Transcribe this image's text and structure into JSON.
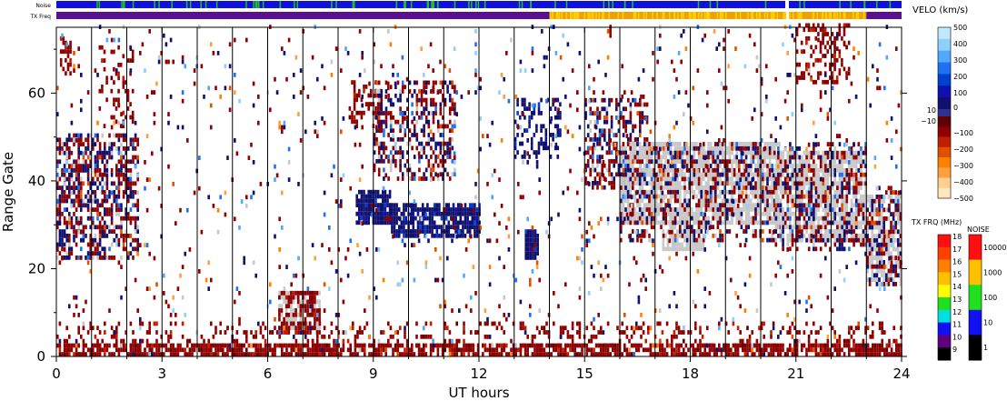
{
  "chart_data": {
    "type": "heatmap",
    "xlabel": "UT hours",
    "ylabel": "Range Gate",
    "xlim": [
      0,
      24
    ],
    "ylim": [
      0,
      75
    ],
    "x_ticks": [
      "0",
      "3",
      "6",
      "9",
      "12",
      "15",
      "18",
      "21",
      "24"
    ],
    "y_ticks": [
      "0",
      "20",
      "40",
      "60"
    ],
    "y_tick_values": [
      0,
      20,
      40,
      60
    ],
    "beam_boundaries_ut": [
      1.0,
      2.0,
      3.0,
      4.0,
      5.0,
      6.0,
      7.0,
      8.0,
      9.0,
      10.0,
      11.0,
      12.0,
      13.0,
      14.0,
      15.0,
      16.0,
      17.0,
      18.0,
      19.0,
      20.0,
      21.0,
      22.0,
      23.0
    ],
    "noise_strip": {
      "label": "Noise",
      "base_color": "#1010e0",
      "segments": [
        {
          "from_ut": 0,
          "to_ut": 20.7,
          "color": "#1010e0"
        },
        {
          "from_ut": 20.7,
          "to_ut": 20.8,
          "color": "#ffffff"
        },
        {
          "from_ut": 20.8,
          "to_ut": 24,
          "color": "#1010e0"
        }
      ]
    },
    "txfreq_strip": {
      "label": "TX Freq",
      "segments": [
        {
          "from_ut": 0,
          "to_ut": 14.0,
          "color": "#5a1090"
        },
        {
          "from_ut": 14.0,
          "to_ut": 20.7,
          "color": "#f0a000"
        },
        {
          "from_ut": 20.7,
          "to_ut": 20.8,
          "color": "#ffffff"
        },
        {
          "from_ut": 20.8,
          "to_ut": 23.0,
          "color": "#f0a000"
        },
        {
          "from_ut": 23.0,
          "to_ut": 24,
          "color": "#5a1090"
        }
      ]
    },
    "scatter_regions": [
      {
        "ut": [
          0.0,
          2.3
        ],
        "gate": [
          22,
          50
        ],
        "class": "mixed",
        "density": 0.55
      },
      {
        "ut": [
          0.1,
          0.4
        ],
        "gate": [
          64,
          72
        ],
        "class": "neg",
        "density": 0.5
      },
      {
        "ut": [
          1.2,
          2.2
        ],
        "gate": [
          52,
          70
        ],
        "class": "neg",
        "density": 0.25
      },
      {
        "ut": [
          8.3,
          9.2
        ],
        "gate": [
          52,
          62
        ],
        "class": "neg",
        "density": 0.4
      },
      {
        "ut": [
          8.5,
          9.5
        ],
        "gate": [
          30,
          37
        ],
        "class": "pos",
        "density": 0.9
      },
      {
        "ut": [
          9.5,
          12.0
        ],
        "gate": [
          27,
          34
        ],
        "class": "pos",
        "density": 0.8
      },
      {
        "ut": [
          9.0,
          11.3
        ],
        "gate": [
          40,
          62
        ],
        "class": "mixed",
        "density": 0.45
      },
      {
        "ut": [
          13.3,
          13.7
        ],
        "gate": [
          22,
          28
        ],
        "class": "pos",
        "density": 0.9
      },
      {
        "ut": [
          13.0,
          14.3
        ],
        "gate": [
          45,
          58
        ],
        "class": "pos",
        "density": 0.35
      },
      {
        "ut": [
          15.0,
          16.8
        ],
        "gate": [
          38,
          58
        ],
        "class": "mixed",
        "density": 0.45
      },
      {
        "ut": [
          16.0,
          20.5
        ],
        "gate": [
          30,
          48
        ],
        "class": "gray",
        "density": 0.75
      },
      {
        "ut": [
          17.2,
          18.4
        ],
        "gate": [
          24,
          32
        ],
        "class": "gray",
        "density": 0.7
      },
      {
        "ut": [
          16.0,
          20.5
        ],
        "gate": [
          26,
          48
        ],
        "class": "mixed",
        "density": 0.35
      },
      {
        "ut": [
          20.4,
          23.0
        ],
        "gate": [
          26,
          46
        ],
        "class": "gray",
        "density": 0.75
      },
      {
        "ut": [
          20.4,
          23.0
        ],
        "gate": [
          24,
          48
        ],
        "class": "mixed",
        "density": 0.35
      },
      {
        "ut": [
          21.0,
          22.5
        ],
        "gate": [
          62,
          75
        ],
        "class": "neg",
        "density": 0.35
      },
      {
        "ut": [
          23.0,
          24.0
        ],
        "gate": [
          16,
          36
        ],
        "class": "gray",
        "density": 0.7
      },
      {
        "ut": [
          23.0,
          24.0
        ],
        "gate": [
          16,
          38
        ],
        "class": "mixed",
        "density": 0.4
      },
      {
        "ut": [
          6.3,
          7.5
        ],
        "gate": [
          6,
          14
        ],
        "class": "gray",
        "density": 0.6
      },
      {
        "ut": [
          6.3,
          7.5
        ],
        "gate": [
          5,
          14
        ],
        "class": "neg",
        "density": 0.45
      },
      {
        "ut": [
          0.0,
          24.0
        ],
        "gate": [
          0,
          2
        ],
        "class": "neg",
        "density": 0.75
      },
      {
        "ut": [
          0.0,
          24.0
        ],
        "gate": [
          2,
          7
        ],
        "class": "neg",
        "density": 0.18
      },
      {
        "ut": [
          0.0,
          24.0
        ],
        "gate": [
          0,
          75
        ],
        "class": "sparse",
        "density": 0.04
      }
    ],
    "velocity_colorbar": {
      "label": "VELO (km/s)",
      "pos_colors": [
        "#c0e8ff",
        "#90d0ff",
        "#50a8ff",
        "#2070f0",
        "#0040d0",
        "#1010b0",
        "#101070"
      ],
      "neg_colors": [
        "#600000",
        "#900000",
        "#c02000",
        "#e05000",
        "#ff8000",
        "#ffa040",
        "#ffd090",
        "#ffe8c0"
      ],
      "tick_labels": [
        "500",
        "400",
        "300",
        "200",
        "100",
        "0",
        "10",
        "−10",
        "−100",
        "−200",
        "−300",
        "−400",
        "−500"
      ],
      "ground_scatter_color": "#c8c8c8"
    },
    "txfreq_colorbar": {
      "label": "TX FRQ (MHz)",
      "tick_labels": [
        "18",
        "17",
        "16",
        "15",
        "14",
        "13",
        "12",
        "11",
        "10",
        "9"
      ],
      "colors": [
        "#ff1010",
        "#ff4000",
        "#ff8000",
        "#ffc000",
        "#ffff00",
        "#20e020",
        "#00e0e0",
        "#1010f0",
        "#600080",
        "#000000"
      ]
    },
    "noise_colorbar": {
      "label": "NOISE",
      "tick_labels": [
        "10000",
        "1000",
        "100",
        "10",
        "1"
      ],
      "colors": [
        "#ff1010",
        "#ffc000",
        "#20e020",
        "#1010f0",
        "#000000"
      ]
    }
  }
}
